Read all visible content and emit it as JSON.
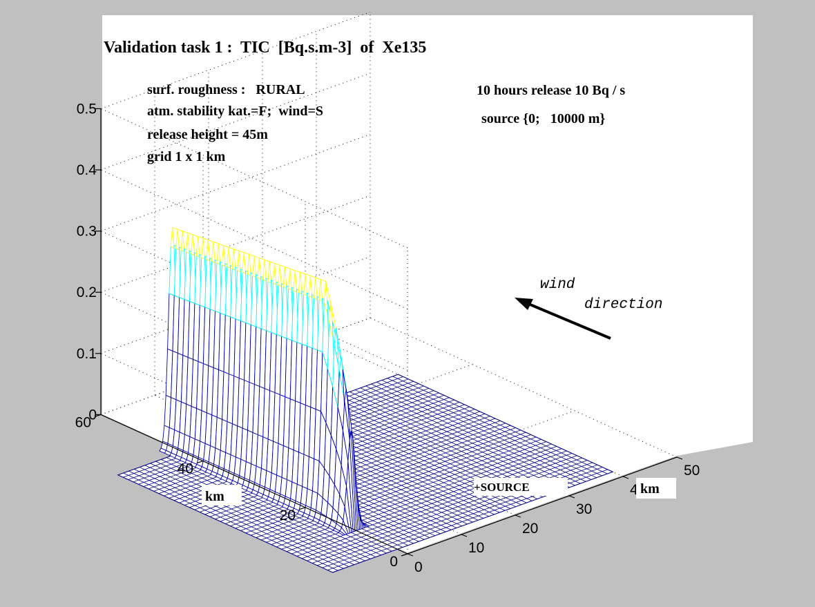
{
  "chart_data": {
    "type": "surface",
    "title": "Validation task 1 :  TIC  [Bq.s.m-3]  of  Xe135",
    "annotations": {
      "left": [
        "surf. roughness :   RURAL",
        "atm. stability kat.=F;  wind=S",
        "release height = 45m",
        "grid 1 x 1 km"
      ],
      "right": [
        "10 hours release 10 Bq / s",
        "source {0;   10000 m}"
      ],
      "wind_label_1": "wind",
      "wind_label_2": "direction",
      "source_label": "+SOURCE"
    },
    "xlabel": "km",
    "ylabel": "km",
    "x_axis": {
      "range": [
        0,
        50
      ],
      "ticks": [
        0,
        10,
        20,
        30,
        40,
        50
      ]
    },
    "y_axis": {
      "range": [
        0,
        60
      ],
      "ticks": [
        0,
        20,
        40,
        60
      ]
    },
    "z_axis": {
      "range": [
        0,
        0.5
      ],
      "ticks": [
        "0",
        "0.1",
        "0.2",
        "0.3",
        "0.4",
        "0.5"
      ]
    },
    "plume": {
      "source_x_km": 0,
      "source_y_km": 10,
      "peak_value": 0.39,
      "direction": "north (+y)",
      "y_extent_km": [
        10,
        46
      ],
      "x_halfwidth_km": 1.2
    },
    "grid": true,
    "colors": {
      "mesh": "#00008b",
      "low": "#0000b0",
      "mid": "#00ffff",
      "high": "#ffff00",
      "top": "#ff0000",
      "background": "#c0c0c0",
      "axes_bg": "#ffffff"
    }
  }
}
